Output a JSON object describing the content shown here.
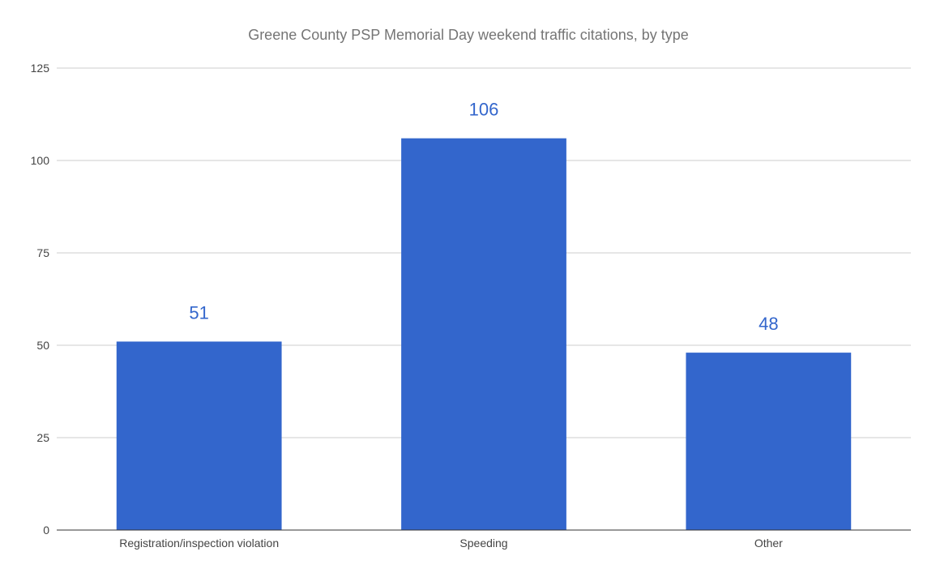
{
  "chart_data": {
    "type": "bar",
    "title": "Greene County PSP Memorial Day weekend traffic citations, by type",
    "categories": [
      "Registration/inspection violation",
      "Speeding",
      "Other"
    ],
    "values": [
      51,
      106,
      48
    ],
    "data_labels": [
      "51",
      "106",
      "48"
    ],
    "y_ticks": [
      "0",
      "25",
      "50",
      "75",
      "100",
      "125"
    ],
    "ylim": [
      0,
      125
    ],
    "grid": true,
    "legend": "none",
    "colors": {
      "bar": "#3366cc",
      "data_label": "#3366cc"
    }
  }
}
